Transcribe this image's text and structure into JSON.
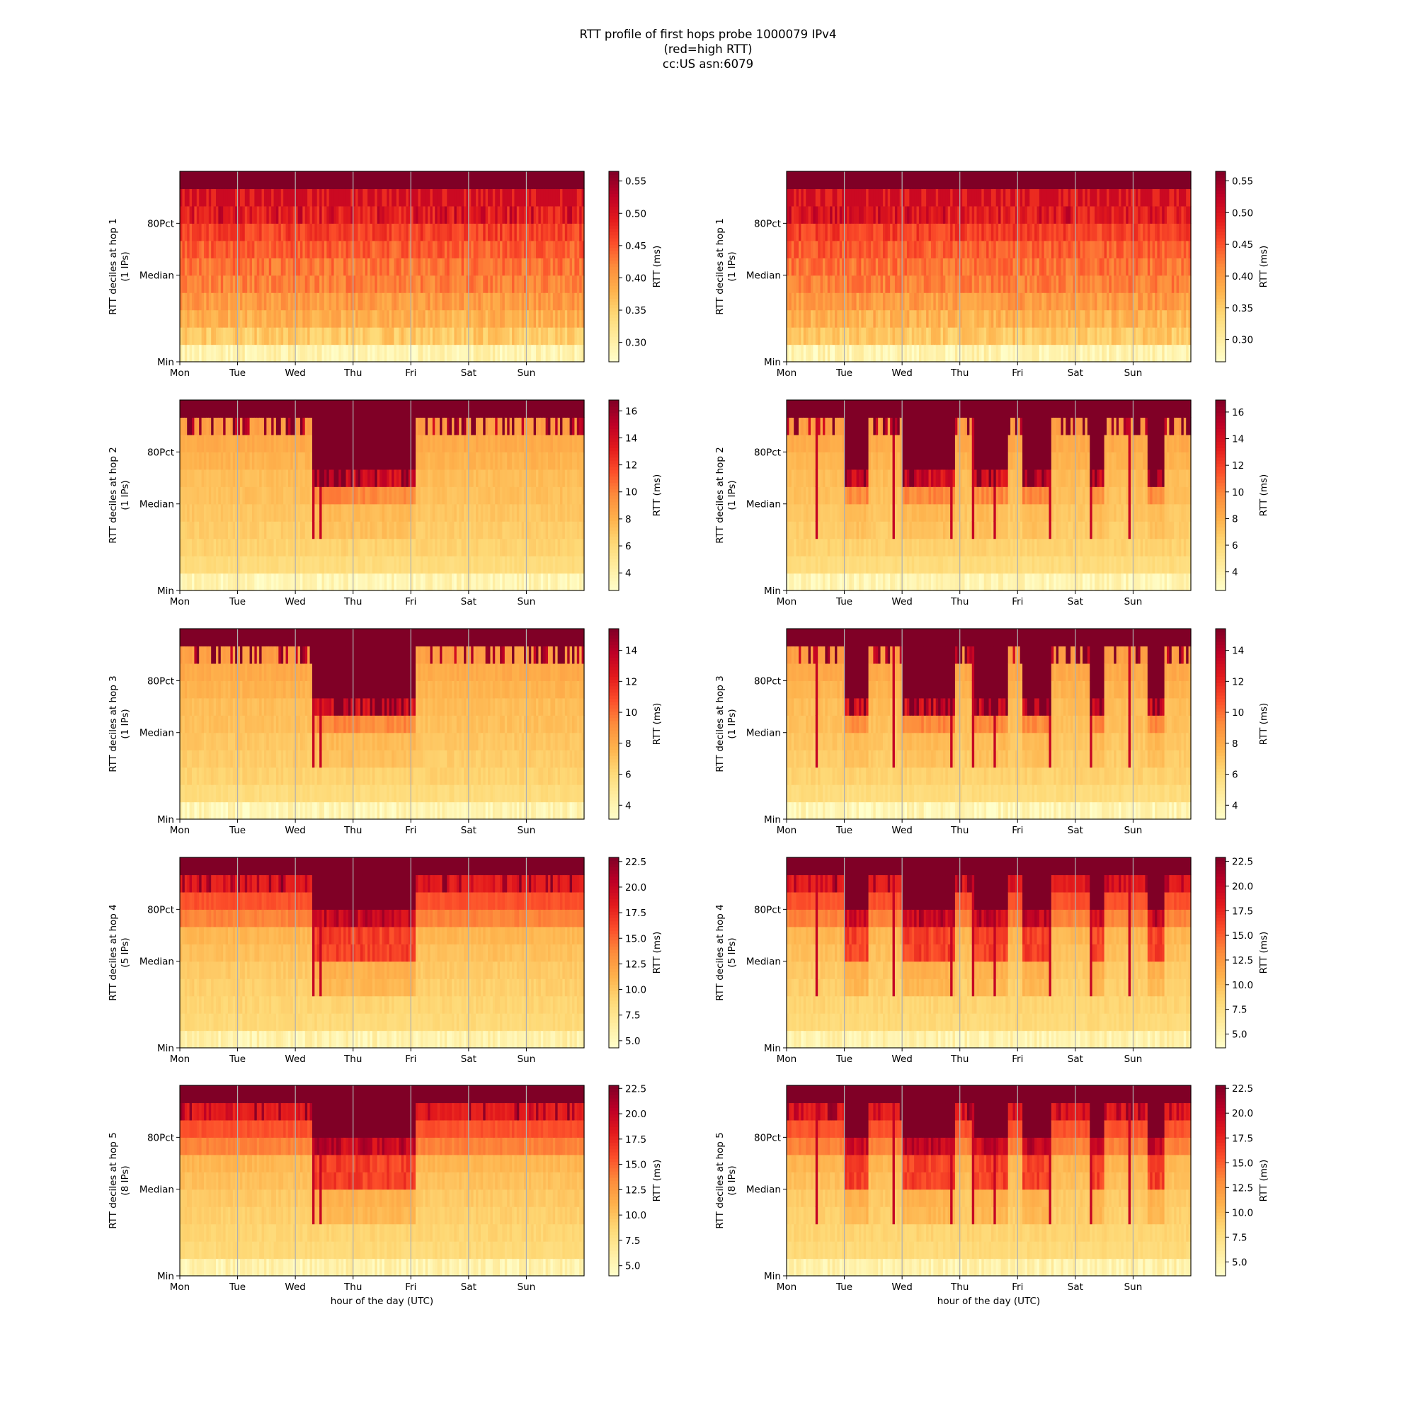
{
  "figure": {
    "title_lines": [
      "RTT profile of first hops probe 1000079 IPv4",
      "(red=high RTT)",
      "cc:US asn:6079"
    ],
    "xlabel": "hour of the day (UTC)"
  },
  "chart_data": [
    {
      "type": "heatmap",
      "panel": "hop1-left",
      "hop": 1,
      "ips": "(1 IPs)",
      "ylabel": "RTT deciles at hop 1",
      "y_tick_labels": [
        "Min",
        "Median",
        "80Pct"
      ],
      "x_tick_labels": [
        "Mon",
        "Tue",
        "Wed",
        "Thu",
        "Fri",
        "Sat",
        "Sun"
      ],
      "colorbar_label": "RTT (ms)",
      "colorbar_ticks": [
        0.3,
        0.35,
        0.4,
        0.45,
        0.5,
        0.55
      ],
      "colorbar_tick_labels": [
        "0.30",
        "0.35",
        "0.40",
        "0.45",
        "0.50",
        "0.55"
      ],
      "vmin": 0.27,
      "vmax": 0.565,
      "pattern": "hop1"
    },
    {
      "type": "heatmap",
      "panel": "hop1-right",
      "hop": 1,
      "ips": "(1 IPs)",
      "ylabel": "RTT deciles at hop 1",
      "y_tick_labels": [
        "Min",
        "Median",
        "80Pct"
      ],
      "x_tick_labels": [
        "Mon",
        "Tue",
        "Wed",
        "Thu",
        "Fri",
        "Sat",
        "Sun"
      ],
      "colorbar_label": "RTT (ms)",
      "colorbar_ticks": [
        0.3,
        0.35,
        0.4,
        0.45,
        0.5,
        0.55
      ],
      "colorbar_tick_labels": [
        "0.30",
        "0.35",
        "0.40",
        "0.45",
        "0.50",
        "0.55"
      ],
      "vmin": 0.265,
      "vmax": 0.565,
      "pattern": "hop1"
    },
    {
      "type": "heatmap",
      "panel": "hop2-left",
      "hop": 2,
      "ips": "(1 IPs)",
      "ylabel": "RTT deciles at hop 2",
      "y_tick_labels": [
        "Min",
        "Median",
        "80Pct"
      ],
      "x_tick_labels": [
        "Mon",
        "Tue",
        "Wed",
        "Thu",
        "Fri",
        "Sat",
        "Sun"
      ],
      "colorbar_label": "RTT (ms)",
      "colorbar_ticks": [
        4,
        6,
        8,
        10,
        12,
        14,
        16
      ],
      "colorbar_tick_labels": [
        "4",
        "6",
        "8",
        "10",
        "12",
        "14",
        "16"
      ],
      "vmin": 2.7,
      "vmax": 16.8,
      "pattern": "left"
    },
    {
      "type": "heatmap",
      "panel": "hop2-right",
      "hop": 2,
      "ips": "(1 IPs)",
      "ylabel": "RTT deciles at hop 2",
      "y_tick_labels": [
        "Min",
        "Median",
        "80Pct"
      ],
      "x_tick_labels": [
        "Mon",
        "Tue",
        "Wed",
        "Thu",
        "Fri",
        "Sat",
        "Sun"
      ],
      "colorbar_label": "RTT (ms)",
      "colorbar_ticks": [
        4,
        6,
        8,
        10,
        12,
        14,
        16
      ],
      "colorbar_tick_labels": [
        "4",
        "6",
        "8",
        "10",
        "12",
        "14",
        "16"
      ],
      "vmin": 2.6,
      "vmax": 16.9,
      "pattern": "right"
    },
    {
      "type": "heatmap",
      "panel": "hop3-left",
      "hop": 3,
      "ips": "(1 IPs)",
      "ylabel": "RTT deciles at hop 3",
      "y_tick_labels": [
        "Min",
        "Median",
        "80Pct"
      ],
      "x_tick_labels": [
        "Mon",
        "Tue",
        "Wed",
        "Thu",
        "Fri",
        "Sat",
        "Sun"
      ],
      "colorbar_label": "RTT (ms)",
      "colorbar_ticks": [
        4,
        6,
        8,
        10,
        12,
        14
      ],
      "colorbar_tick_labels": [
        "4",
        "6",
        "8",
        "10",
        "12",
        "14"
      ],
      "vmin": 3.1,
      "vmax": 15.4,
      "pattern": "left"
    },
    {
      "type": "heatmap",
      "panel": "hop3-right",
      "hop": 3,
      "ips": "(1 IPs)",
      "ylabel": "RTT deciles at hop 3",
      "y_tick_labels": [
        "Min",
        "Median",
        "80Pct"
      ],
      "x_tick_labels": [
        "Mon",
        "Tue",
        "Wed",
        "Thu",
        "Fri",
        "Sat",
        "Sun"
      ],
      "colorbar_label": "RTT (ms)",
      "colorbar_ticks": [
        4,
        6,
        8,
        10,
        12,
        14
      ],
      "colorbar_tick_labels": [
        "4",
        "6",
        "8",
        "10",
        "12",
        "14"
      ],
      "vmin": 3.1,
      "vmax": 15.4,
      "pattern": "right"
    },
    {
      "type": "heatmap",
      "panel": "hop4-left",
      "hop": 4,
      "ips": "(5 IPs)",
      "ylabel": "RTT deciles at hop 4",
      "y_tick_labels": [
        "Min",
        "Median",
        "80Pct"
      ],
      "x_tick_labels": [
        "Mon",
        "Tue",
        "Wed",
        "Thu",
        "Fri",
        "Sat",
        "Sun"
      ],
      "colorbar_label": "RTT (ms)",
      "colorbar_ticks": [
        5.0,
        7.5,
        10.0,
        12.5,
        15.0,
        17.5,
        20.0,
        22.5
      ],
      "colorbar_tick_labels": [
        "5.0",
        "7.5",
        "10.0",
        "12.5",
        "15.0",
        "17.5",
        "20.0",
        "22.5"
      ],
      "vmin": 4.3,
      "vmax": 22.9,
      "pattern": "left"
    },
    {
      "type": "heatmap",
      "panel": "hop4-right",
      "hop": 4,
      "ips": "(5 IPs)",
      "ylabel": "RTT deciles at hop 4",
      "y_tick_labels": [
        "Min",
        "Median",
        "80Pct"
      ],
      "x_tick_labels": [
        "Mon",
        "Tue",
        "Wed",
        "Thu",
        "Fri",
        "Sat",
        "Sun"
      ],
      "colorbar_label": "RTT (ms)",
      "colorbar_ticks": [
        5.0,
        7.5,
        10.0,
        12.5,
        15.0,
        17.5,
        20.0,
        22.5
      ],
      "colorbar_tick_labels": [
        "5.0",
        "7.5",
        "10.0",
        "12.5",
        "15.0",
        "17.5",
        "20.0",
        "22.5"
      ],
      "vmin": 3.6,
      "vmax": 22.9,
      "pattern": "right"
    },
    {
      "type": "heatmap",
      "panel": "hop5-left",
      "hop": 5,
      "ips": "(8 IPs)",
      "ylabel": "RTT deciles at hop 5",
      "y_tick_labels": [
        "Min",
        "Median",
        "80Pct"
      ],
      "x_tick_labels": [
        "Mon",
        "Tue",
        "Wed",
        "Thu",
        "Fri",
        "Sat",
        "Sun"
      ],
      "colorbar_label": "RTT (ms)",
      "colorbar_ticks": [
        5.0,
        7.5,
        10.0,
        12.5,
        15.0,
        17.5,
        20.0,
        22.5
      ],
      "colorbar_tick_labels": [
        "5.0",
        "7.5",
        "10.0",
        "12.5",
        "15.0",
        "17.5",
        "20.0",
        "22.5"
      ],
      "vmin": 4.0,
      "vmax": 22.8,
      "pattern": "left"
    },
    {
      "type": "heatmap",
      "panel": "hop5-right",
      "hop": 5,
      "ips": "(8 IPs)",
      "ylabel": "RTT deciles at hop 5",
      "y_tick_labels": [
        "Min",
        "Median",
        "80Pct"
      ],
      "x_tick_labels": [
        "Mon",
        "Tue",
        "Wed",
        "Thu",
        "Fri",
        "Sat",
        "Sun"
      ],
      "colorbar_label": "RTT (ms)",
      "colorbar_ticks": [
        5.0,
        7.5,
        10.0,
        12.5,
        15.0,
        17.5,
        20.0,
        22.5
      ],
      "colorbar_tick_labels": [
        "5.0",
        "7.5",
        "10.0",
        "12.5",
        "15.0",
        "17.5",
        "20.0",
        "22.5"
      ],
      "vmin": 3.6,
      "vmax": 22.8,
      "pattern": "right"
    }
  ],
  "colormap": {
    "name": "YlOrRd",
    "stops": [
      "#ffffcc",
      "#ffeda0",
      "#fed976",
      "#feb24c",
      "#fd8d3c",
      "#fc4e2a",
      "#e31a1c",
      "#bd0026",
      "#800026"
    ]
  },
  "colors": {
    "gridline": "#b0b0b0",
    "axis": "#000000"
  }
}
